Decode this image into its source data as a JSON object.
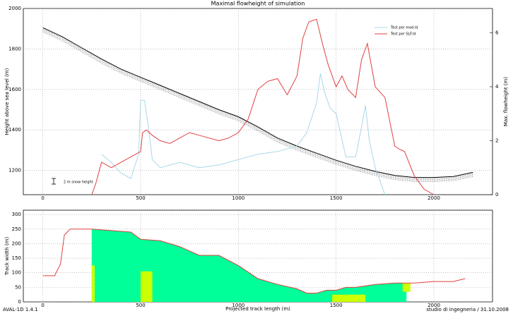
{
  "chart_data": [
    {
      "type": "line",
      "title": "Maximal flowheight of simulation",
      "xlabel": "",
      "ylabel": "Height above sea level (m)",
      "y2label": "Max. flowheight (m)",
      "xlim": [
        -100,
        2300
      ],
      "xticks": [
        0,
        500,
        1000,
        1500,
        2000
      ],
      "ylim": [
        1080,
        2000
      ],
      "yticks": [
        1200,
        1400,
        1600,
        1800,
        2000
      ],
      "y2lim": [
        0,
        6.9
      ],
      "y2ticks": [
        0,
        2,
        4,
        6
      ],
      "grid": true,
      "legend": "upper right",
      "annotation": "2 m snow height",
      "series": [
        {
          "color": "#000000",
          "x": [
            0,
            100,
            200,
            300,
            400,
            500,
            600,
            700,
            800,
            900,
            1000,
            1100,
            1200,
            1300,
            1400,
            1500,
            1600,
            1700,
            1800,
            1900,
            2000,
            2100,
            2200
          ],
          "values": [
            1905,
            1860,
            1805,
            1750,
            1700,
            1660,
            1620,
            1580,
            1540,
            1500,
            1465,
            1415,
            1360,
            1320,
            1285,
            1250,
            1220,
            1195,
            1175,
            1165,
            1165,
            1170,
            1190
          ]
        },
        {
          "name": "Test per mod.ld",
          "color": "#a8d8e8",
          "axis": "y2",
          "x": [
            300,
            350,
            400,
            450,
            490,
            500,
            520,
            540,
            560,
            600,
            700,
            800,
            900,
            1000,
            1100,
            1200,
            1300,
            1350,
            1400,
            1420,
            1440,
            1470,
            1500,
            1550,
            1600,
            1630,
            1650,
            1670,
            1700,
            1750
          ],
          "values": [
            1.5,
            1.2,
            0.8,
            0.6,
            1.5,
            3.5,
            3.5,
            2.5,
            1.3,
            1.0,
            1.2,
            1.0,
            1.1,
            1.3,
            1.5,
            1.6,
            1.8,
            2.3,
            3.4,
            4.5,
            3.8,
            3.2,
            3.0,
            1.4,
            1.4,
            2.5,
            3.3,
            2.0,
            1.0,
            0
          ]
        },
        {
          "name": "Test per SLF.ld",
          "color": "#e04040",
          "axis": "y2",
          "x": [
            250,
            270,
            300,
            350,
            400,
            450,
            500,
            510,
            530,
            560,
            600,
            650,
            700,
            750,
            800,
            850,
            900,
            950,
            1000,
            1050,
            1100,
            1150,
            1200,
            1250,
            1300,
            1330,
            1360,
            1400,
            1430,
            1460,
            1500,
            1530,
            1560,
            1600,
            1630,
            1660,
            1700,
            1750,
            1800,
            1820,
            1850,
            1900,
            1950,
            2000
          ],
          "values": [
            0,
            0.4,
            1.2,
            1.0,
            1.2,
            1.4,
            1.6,
            2.3,
            2.4,
            2.2,
            2.0,
            1.9,
            2.1,
            2.3,
            2.2,
            2.1,
            2.0,
            2.1,
            2.3,
            2.8,
            3.9,
            4.2,
            4.3,
            3.7,
            4.4,
            5.8,
            6.4,
            6.5,
            5.6,
            4.8,
            4.0,
            4.4,
            3.9,
            3.6,
            5.0,
            5.6,
            4.0,
            3.6,
            1.8,
            1.7,
            1.6,
            0.7,
            0.2,
            0
          ]
        }
      ]
    },
    {
      "type": "area",
      "xlabel": "Projected track length (m)",
      "ylabel": "Track width (m)",
      "xlim": [
        -100,
        2300
      ],
      "xticks": [
        0,
        500,
        1000,
        1500,
        2000
      ],
      "ylim": [
        0,
        315
      ],
      "yticks": [
        0,
        50,
        100,
        150,
        200,
        250,
        300
      ],
      "grid": true,
      "series": [
        {
          "color": "#00ff99",
          "fill": true,
          "x": [
            250,
            450,
            500,
            600,
            700,
            800,
            900,
            1000,
            1100,
            1200,
            1300,
            1350,
            1400,
            1450,
            1500,
            1550,
            1600,
            1700,
            1800,
            1860
          ],
          "values": [
            250,
            240,
            215,
            210,
            190,
            160,
            160,
            125,
            80,
            60,
            45,
            30,
            30,
            40,
            40,
            50,
            50,
            60,
            65,
            65
          ]
        },
        {
          "color": "#e04040",
          "fill": false,
          "x": [
            0,
            60,
            90,
            110,
            140,
            250,
            450,
            500,
            600,
            700,
            800,
            900,
            1000,
            1100,
            1200,
            1300,
            1350,
            1400,
            1450,
            1500,
            1550,
            1600,
            1700,
            1800,
            1900,
            2000,
            2100,
            2160
          ],
          "values": [
            90,
            90,
            130,
            230,
            250,
            250,
            240,
            215,
            210,
            190,
            160,
            160,
            125,
            80,
            60,
            45,
            30,
            30,
            40,
            40,
            50,
            50,
            60,
            65,
            65,
            70,
            70,
            80
          ]
        }
      ],
      "patches": {
        "color": "#ccff00",
        "x0": [
          250,
          500,
          1480,
          1840
        ],
        "x1": [
          265,
          560,
          1650,
          1880
        ],
        "y0": [
          0,
          0,
          0,
          35
        ],
        "y1": [
          125,
          105,
          25,
          65
        ]
      }
    }
  ],
  "footer": {
    "left": "AVAL-1D 1.4.1",
    "right": "studio di ingegneria  /  31.10.2008"
  }
}
